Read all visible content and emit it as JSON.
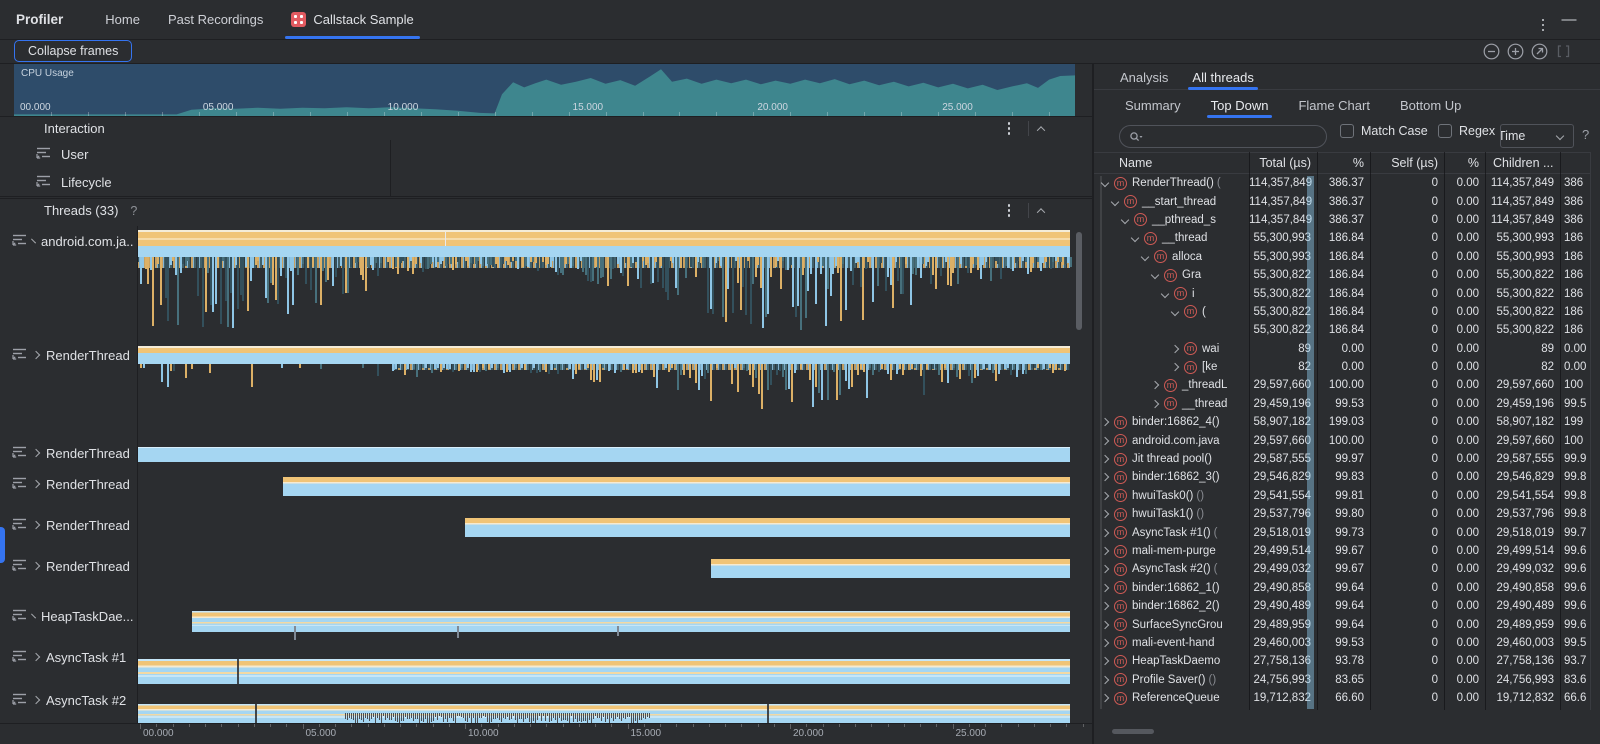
{
  "colors": {
    "accent": "#3574f0",
    "cpu_background": "#2e4c6a",
    "cpu_area": "#3e868e",
    "band_orange": "#f0c477",
    "band_blue": "#a5d6f2",
    "band_cream": "#f6ead0",
    "band_blue_light": "#c6e6f8",
    "method_icon_red": "#cf5a55"
  },
  "topbar": {
    "app_title": "Profiler",
    "tabs": [
      {
        "label": "Home",
        "active": false,
        "icon": null
      },
      {
        "label": "Past Recordings",
        "active": false,
        "icon": null
      },
      {
        "label": "Callstack Sample",
        "active": true,
        "icon": "profiler-session-icon"
      }
    ],
    "window_controls": [
      "more-kebab-icon",
      "minimize-icon"
    ]
  },
  "toolbar": {
    "collapse_frames_label": "Collapse frames",
    "zoom_controls": [
      "zoom-out",
      "zoom-in",
      "reset-zoom",
      "frame-selection"
    ]
  },
  "cpu": {
    "label": "CPU Usage",
    "axis_labels": [
      "00.000",
      "05.000",
      "10.000",
      "15.000",
      "20.000",
      "25.000"
    ],
    "time_max": 28.7,
    "usage_points": [
      [
        0,
        3
      ],
      [
        3,
        3
      ],
      [
        4.4,
        3
      ],
      [
        4.8,
        12
      ],
      [
        5.4,
        15
      ],
      [
        6,
        14
      ],
      [
        6.6,
        16
      ],
      [
        7.2,
        14
      ],
      [
        7.8,
        16
      ],
      [
        8.4,
        15
      ],
      [
        9,
        17
      ],
      [
        9.6,
        15
      ],
      [
        10.2,
        17
      ],
      [
        10.8,
        15
      ],
      [
        11.4,
        13
      ],
      [
        12,
        10
      ],
      [
        12.6,
        6
      ],
      [
        13,
        5
      ],
      [
        13.2,
        42
      ],
      [
        13.5,
        65
      ],
      [
        13.8,
        55
      ],
      [
        14.1,
        63
      ],
      [
        14.4,
        70
      ],
      [
        14.8,
        60
      ],
      [
        15.2,
        66
      ],
      [
        15.6,
        73
      ],
      [
        16,
        62
      ],
      [
        16.4,
        69
      ],
      [
        16.8,
        58
      ],
      [
        17.2,
        76
      ],
      [
        17.5,
        90
      ],
      [
        17.8,
        66
      ],
      [
        18.2,
        72
      ],
      [
        18.6,
        62
      ],
      [
        19,
        70
      ],
      [
        19.4,
        63
      ],
      [
        19.8,
        70
      ],
      [
        20.2,
        61
      ],
      [
        20.6,
        68
      ],
      [
        21,
        62
      ],
      [
        21.4,
        70
      ],
      [
        21.8,
        63
      ],
      [
        22.2,
        71
      ],
      [
        22.6,
        61
      ],
      [
        23,
        68
      ],
      [
        23.4,
        59
      ],
      [
        23.8,
        66
      ],
      [
        24.2,
        57
      ],
      [
        24.6,
        64
      ],
      [
        25,
        55
      ],
      [
        25.4,
        62
      ],
      [
        25.8,
        53
      ],
      [
        26.2,
        60
      ],
      [
        26.6,
        50
      ],
      [
        27,
        57
      ],
      [
        27.4,
        63
      ],
      [
        27.7,
        54
      ],
      [
        28,
        70
      ],
      [
        28.3,
        77
      ],
      [
        28.7,
        78
      ]
    ]
  },
  "interaction": {
    "header": "Interaction",
    "rows": [
      {
        "label": "User"
      },
      {
        "label": "Lifecycle"
      }
    ]
  },
  "threads": {
    "header": "Threads (33)",
    "help": "?",
    "axis_labels": [
      "00.000",
      "05.000",
      "10.000",
      "15.000",
      "20.000",
      "25.000"
    ],
    "rows": [
      {
        "name": "android.com.ja...",
        "track_type": "flame-dense",
        "start": 0
      },
      {
        "name": "RenderThread",
        "track_type": "flame-sparse",
        "start": 0
      },
      {
        "name": "RenderThread",
        "track_type": "bar-blue",
        "start": 0
      },
      {
        "name": "RenderThread",
        "track_type": "bar-laminate",
        "start": 0.156
      },
      {
        "name": "RenderThread",
        "track_type": "bar-laminate",
        "start": 0.352
      },
      {
        "name": "RenderThread",
        "track_type": "bar-laminate",
        "start": 0.615
      },
      {
        "name": "HeapTaskDae...",
        "track_type": "bar-laminate-ticks",
        "start": 0.059,
        "ticks": [
          0.168,
          0.343,
          0.515
        ]
      },
      {
        "name": "AsyncTask #1",
        "track_type": "bar-laminate-wide",
        "start": 0,
        "ticks": [
          0.107
        ]
      },
      {
        "name": "AsyncTask #2",
        "track_type": "bar-laminate-spiky",
        "start": 0,
        "ticks": [
          0.127,
          0.675
        ],
        "cluster": [
          0.223,
          0.549
        ]
      }
    ]
  },
  "analysis": {
    "tabs": [
      {
        "label": "Analysis",
        "active": false
      },
      {
        "label": "All threads",
        "active": true
      }
    ],
    "subtabs": [
      {
        "label": "Summary",
        "active": false
      },
      {
        "label": "Top Down",
        "active": true
      },
      {
        "label": "Flame Chart",
        "active": false
      },
      {
        "label": "Bottom Up",
        "active": false
      }
    ],
    "search": {
      "value": "",
      "placeholder": ""
    },
    "match_case_label": "Match Case",
    "regex_label": "Regex",
    "filter_dropdown_value": "Time",
    "help_label": "?"
  },
  "table": {
    "columns": [
      "Name",
      "Total (µs)",
      "%",
      "Self (µs)",
      "%",
      "Children ..."
    ],
    "rows": [
      {
        "name": "RenderThread()",
        "suffix": "(",
        "level": 0,
        "state": "expanded",
        "icon": true,
        "total": "114,357,849",
        "pct": "386.37",
        "self": "0",
        "self_pct": "0.00",
        "children": "114,357,849",
        "children_pct": "386"
      },
      {
        "name": "__start_thread",
        "level": 1,
        "state": "expanded",
        "icon": true,
        "total": "114,357,849",
        "pct": "386.37",
        "self": "0",
        "self_pct": "0.00",
        "children": "114,357,849",
        "children_pct": "386"
      },
      {
        "name": "__pthread_s",
        "level": 2,
        "state": "expanded",
        "icon": true,
        "total": "114,357,849",
        "pct": "386.37",
        "self": "0",
        "self_pct": "0.00",
        "children": "114,357,849",
        "children_pct": "386"
      },
      {
        "name": "__thread",
        "level": 3,
        "state": "expanded",
        "icon": true,
        "total": "55,300,993",
        "pct": "186.84",
        "self": "0",
        "self_pct": "0.00",
        "children": "55,300,993",
        "children_pct": "186"
      },
      {
        "name": "alloca",
        "level": 4,
        "state": "expanded",
        "icon": true,
        "total": "55,300,993",
        "pct": "186.84",
        "self": "0",
        "self_pct": "0.00",
        "children": "55,300,993",
        "children_pct": "186"
      },
      {
        "name": "Gra",
        "level": 5,
        "state": "expanded",
        "icon": true,
        "total": "55,300,822",
        "pct": "186.84",
        "self": "0",
        "self_pct": "0.00",
        "children": "55,300,822",
        "children_pct": "186"
      },
      {
        "name": "i",
        "level": 6,
        "state": "expanded",
        "icon": true,
        "total": "55,300,822",
        "pct": "186.84",
        "self": "0",
        "self_pct": "0.00",
        "children": "55,300,822",
        "children_pct": "186"
      },
      {
        "name": "(",
        "level": 7,
        "state": "expanded",
        "icon": true,
        "total": "55,300,822",
        "pct": "186.84",
        "self": "0",
        "self_pct": "0.00",
        "children": "55,300,822",
        "children_pct": "186"
      },
      {
        "name": "",
        "level": 8,
        "state": "leaf",
        "icon": false,
        "total": "55,300,822",
        "pct": "186.84",
        "self": "0",
        "self_pct": "0.00",
        "children": "55,300,822",
        "children_pct": "186"
      },
      {
        "name": "wai",
        "level": 7,
        "state": "collapsed",
        "icon": true,
        "total": "89",
        "pct": "0.00",
        "self": "0",
        "self_pct": "0.00",
        "children": "89",
        "children_pct": "0.00"
      },
      {
        "name": "[ke",
        "level": 7,
        "state": "collapsed",
        "icon": true,
        "total": "82",
        "pct": "0.00",
        "self": "0",
        "self_pct": "0.00",
        "children": "82",
        "children_pct": "0.00"
      },
      {
        "name": "_threadL",
        "level": 5,
        "state": "collapsed",
        "icon": true,
        "total": "29,597,660",
        "pct": "100.00",
        "self": "0",
        "self_pct": "0.00",
        "children": "29,597,660",
        "children_pct": "100"
      },
      {
        "name": "__thread",
        "level": 5,
        "state": "collapsed",
        "icon": true,
        "total": "29,459,196",
        "pct": "99.53",
        "self": "0",
        "self_pct": "0.00",
        "children": "29,459,196",
        "children_pct": "99.5"
      },
      {
        "name": "binder:16862_4()",
        "level": 0,
        "state": "collapsed",
        "icon": true,
        "total": "58,907,182",
        "pct": "199.03",
        "self": "0",
        "self_pct": "0.00",
        "children": "58,907,182",
        "children_pct": "199"
      },
      {
        "name": "android.com.java",
        "level": 0,
        "state": "collapsed",
        "icon": true,
        "total": "29,597,660",
        "pct": "100.00",
        "self": "0",
        "self_pct": "0.00",
        "children": "29,597,660",
        "children_pct": "100"
      },
      {
        "name": "Jit thread pool()",
        "level": 0,
        "state": "collapsed",
        "icon": true,
        "total": "29,587,555",
        "pct": "99.97",
        "self": "0",
        "self_pct": "0.00",
        "children": "29,587,555",
        "children_pct": "99.9"
      },
      {
        "name": "binder:16862_3()",
        "level": 0,
        "state": "collapsed",
        "icon": true,
        "total": "29,546,829",
        "pct": "99.83",
        "self": "0",
        "self_pct": "0.00",
        "children": "29,546,829",
        "children_pct": "99.8"
      },
      {
        "name": "hwuiTask0()",
        "suffix": "()",
        "level": 0,
        "state": "collapsed",
        "icon": true,
        "total": "29,541,554",
        "pct": "99.81",
        "self": "0",
        "self_pct": "0.00",
        "children": "29,541,554",
        "children_pct": "99.8"
      },
      {
        "name": "hwuiTask1()",
        "suffix": "()",
        "level": 0,
        "state": "collapsed",
        "icon": true,
        "total": "29,537,796",
        "pct": "99.80",
        "self": "0",
        "self_pct": "0.00",
        "children": "29,537,796",
        "children_pct": "99.8"
      },
      {
        "name": "AsyncTask #1()",
        "suffix": "(",
        "level": 0,
        "state": "collapsed",
        "icon": true,
        "total": "29,518,019",
        "pct": "99.73",
        "self": "0",
        "self_pct": "0.00",
        "children": "29,518,019",
        "children_pct": "99.7"
      },
      {
        "name": "mali-mem-purge",
        "level": 0,
        "state": "collapsed",
        "icon": true,
        "total": "29,499,514",
        "pct": "99.67",
        "self": "0",
        "self_pct": "0.00",
        "children": "29,499,514",
        "children_pct": "99.6"
      },
      {
        "name": "AsyncTask #2()",
        "suffix": "(",
        "level": 0,
        "state": "collapsed",
        "icon": true,
        "total": "29,499,032",
        "pct": "99.67",
        "self": "0",
        "self_pct": "0.00",
        "children": "29,499,032",
        "children_pct": "99.6"
      },
      {
        "name": "binder:16862_1()",
        "level": 0,
        "state": "collapsed",
        "icon": true,
        "total": "29,490,858",
        "pct": "99.64",
        "self": "0",
        "self_pct": "0.00",
        "children": "29,490,858",
        "children_pct": "99.6"
      },
      {
        "name": "binder:16862_2()",
        "level": 0,
        "state": "collapsed",
        "icon": true,
        "total": "29,490,489",
        "pct": "99.64",
        "self": "0",
        "self_pct": "0.00",
        "children": "29,490,489",
        "children_pct": "99.6"
      },
      {
        "name": "SurfaceSyncGrou",
        "level": 0,
        "state": "collapsed",
        "icon": true,
        "total": "29,489,959",
        "pct": "99.64",
        "self": "0",
        "self_pct": "0.00",
        "children": "29,489,959",
        "children_pct": "99.6"
      },
      {
        "name": "mali-event-hand",
        "level": 0,
        "state": "collapsed",
        "icon": true,
        "total": "29,460,003",
        "pct": "99.53",
        "self": "0",
        "self_pct": "0.00",
        "children": "29,460,003",
        "children_pct": "99.5"
      },
      {
        "name": "HeapTaskDaemo",
        "level": 0,
        "state": "collapsed",
        "icon": true,
        "total": "27,758,136",
        "pct": "93.78",
        "self": "0",
        "self_pct": "0.00",
        "children": "27,758,136",
        "children_pct": "93.7"
      },
      {
        "name": "Profile Saver()",
        "suffix": "()",
        "level": 0,
        "state": "collapsed",
        "icon": true,
        "total": "24,756,993",
        "pct": "83.65",
        "self": "0",
        "self_pct": "0.00",
        "children": "24,756,993",
        "children_pct": "83.6"
      },
      {
        "name": "ReferenceQueue",
        "level": 0,
        "state": "collapsed",
        "icon": true,
        "total": "19,712,832",
        "pct": "66.60",
        "self": "0",
        "self_pct": "0.00",
        "children": "19,712,832",
        "children_pct": "66.6"
      }
    ]
  }
}
